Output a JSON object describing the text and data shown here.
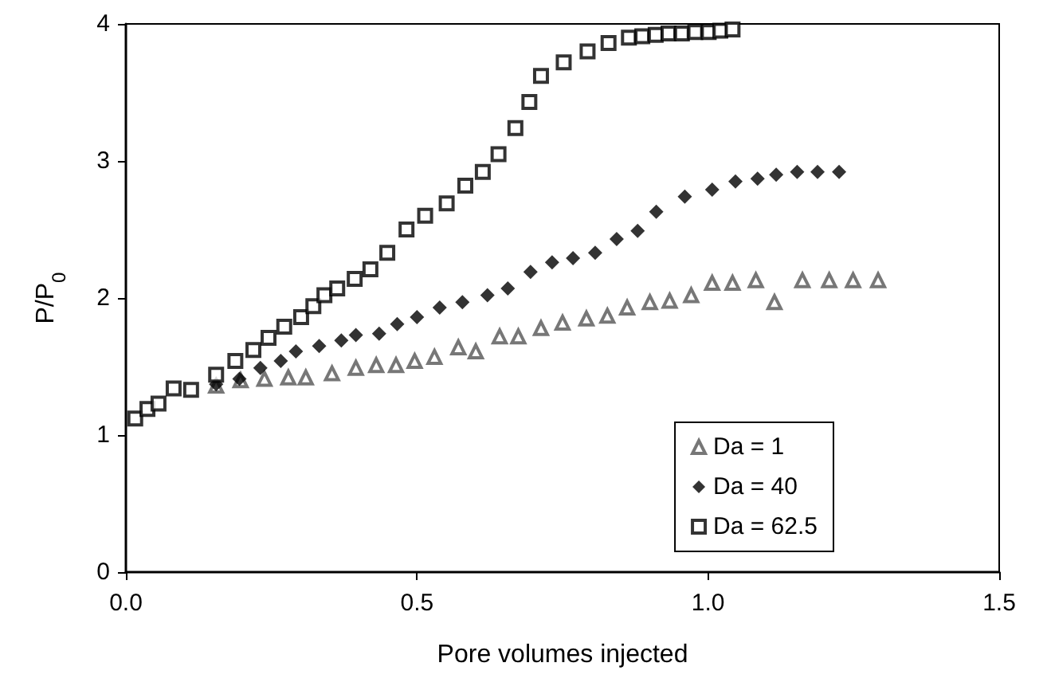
{
  "chart_data": {
    "type": "scatter",
    "xlabel": "Pore volumes injected",
    "ylabel": "P/P$_{0}$",
    "xlim": [
      0,
      1.5
    ],
    "xticks": [
      {
        "value": 0,
        "label": "0.0"
      },
      {
        "value": 0.5,
        "label": "0.5"
      },
      {
        "value": 1,
        "label": "1.0"
      },
      {
        "value": 1.5,
        "label": "1.5"
      }
    ],
    "ylim": [
      0,
      4
    ],
    "yticks": [
      0,
      1,
      2,
      3,
      4
    ],
    "grid": false,
    "legend": "bottom right",
    "series": [
      {
        "name": "Da = 1",
        "color": "#555555",
        "marker": "triangle",
        "x": [
          0.155,
          0.197,
          0.238,
          0.279,
          0.309,
          0.354,
          0.395,
          0.43,
          0.464,
          0.496,
          0.53,
          0.571,
          0.601,
          0.642,
          0.674,
          0.713,
          0.75,
          0.791,
          0.827,
          0.861,
          0.9,
          0.934,
          0.971,
          1.007,
          1.042,
          1.082,
          1.114,
          1.162,
          1.208,
          1.249,
          1.292
        ],
        "values": [
          1.36,
          1.4,
          1.41,
          1.42,
          1.42,
          1.45,
          1.49,
          1.51,
          1.51,
          1.54,
          1.57,
          1.64,
          1.61,
          1.72,
          1.72,
          1.78,
          1.82,
          1.85,
          1.87,
          1.93,
          1.97,
          1.98,
          2.02,
          2.11,
          2.11,
          2.13,
          1.97,
          2.13,
          2.13,
          2.13,
          2.13
        ]
      },
      {
        "name": "Da = 40",
        "color": "#000000",
        "marker": "diamond",
        "x": [
          0.155,
          0.195,
          0.231,
          0.266,
          0.292,
          0.332,
          0.37,
          0.395,
          0.435,
          0.466,
          0.5,
          0.539,
          0.578,
          0.621,
          0.656,
          0.695,
          0.732,
          0.768,
          0.806,
          0.843,
          0.879,
          0.911,
          0.96,
          1.007,
          1.047,
          1.085,
          1.117,
          1.153,
          1.188,
          1.225
        ],
        "values": [
          1.37,
          1.41,
          1.49,
          1.54,
          1.61,
          1.65,
          1.69,
          1.73,
          1.74,
          1.81,
          1.86,
          1.93,
          1.97,
          2.02,
          2.07,
          2.19,
          2.26,
          2.29,
          2.33,
          2.43,
          2.49,
          2.63,
          2.74,
          2.79,
          2.85,
          2.87,
          2.9,
          2.92,
          2.92,
          2.92
        ]
      },
      {
        "name": "Da = 62.5",
        "color": "#000000",
        "marker": "square",
        "x": [
          0.016,
          0.037,
          0.056,
          0.082,
          0.112,
          0.155,
          0.188,
          0.219,
          0.245,
          0.272,
          0.301,
          0.322,
          0.341,
          0.363,
          0.393,
          0.42,
          0.449,
          0.482,
          0.514,
          0.551,
          0.583,
          0.613,
          0.64,
          0.669,
          0.693,
          0.713,
          0.752,
          0.793,
          0.829,
          0.864,
          0.887,
          0.91,
          0.932,
          0.955,
          0.978,
          1.001,
          1.021,
          1.042
        ],
        "values": [
          1.12,
          1.19,
          1.23,
          1.34,
          1.33,
          1.44,
          1.54,
          1.62,
          1.71,
          1.79,
          1.86,
          1.94,
          2.02,
          2.07,
          2.14,
          2.21,
          2.33,
          2.5,
          2.6,
          2.69,
          2.82,
          2.92,
          3.05,
          3.24,
          3.43,
          3.62,
          3.72,
          3.8,
          3.86,
          3.9,
          3.91,
          3.92,
          3.93,
          3.93,
          3.94,
          3.94,
          3.95,
          3.96
        ]
      }
    ]
  }
}
